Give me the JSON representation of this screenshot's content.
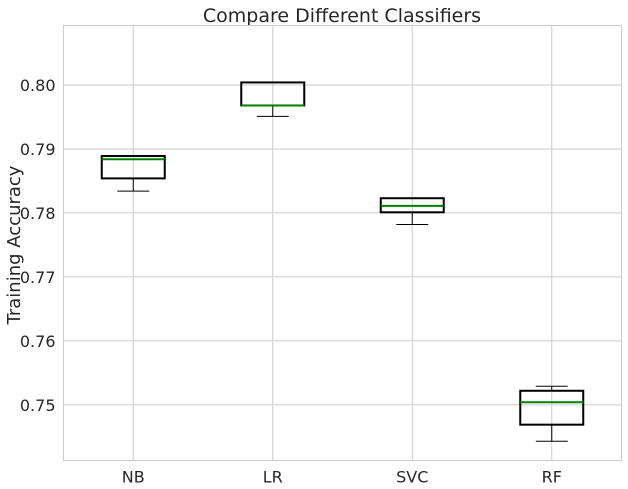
{
  "chart_data": {
    "type": "box",
    "title": "Compare Different Classifiers",
    "xlabel": "",
    "ylabel": "Training Accuracy",
    "categories": [
      "NB",
      "LR",
      "SVC",
      "RF"
    ],
    "boxes": [
      {
        "category": "NB",
        "whislo": 0.7834,
        "q1": 0.7854,
        "med": 0.7884,
        "q3": 0.7889,
        "whishi": 0.7889
      },
      {
        "category": "LR",
        "whislo": 0.7951,
        "q1": 0.7968,
        "med": 0.7968,
        "q3": 0.8004,
        "whishi": 0.8004
      },
      {
        "category": "SVC",
        "whislo": 0.7782,
        "q1": 0.7801,
        "med": 0.7811,
        "q3": 0.7823,
        "whishi": 0.7823
      },
      {
        "category": "RF",
        "whislo": 0.7443,
        "q1": 0.7469,
        "med": 0.7504,
        "q3": 0.7522,
        "whishi": 0.7529
      }
    ],
    "yticks": [
      0.75,
      0.76,
      0.77,
      0.78,
      0.79,
      0.8
    ],
    "ytick_labels": [
      "0.75",
      "0.76",
      "0.77",
      "0.78",
      "0.79",
      "0.80"
    ],
    "ylim": [
      0.7413,
      0.8093
    ],
    "grid": true,
    "colors": {
      "box": "#000000",
      "median": "#008000",
      "grid": "#cccccc",
      "text": "#262626"
    }
  }
}
